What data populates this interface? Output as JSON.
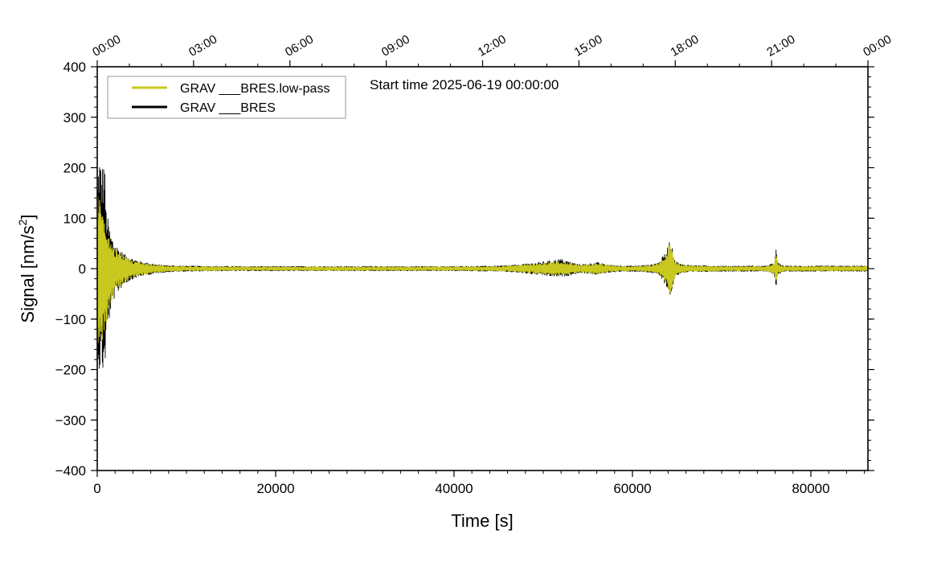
{
  "chart_data": {
    "type": "line",
    "title": "",
    "annotation": "Start time 2025-06-19 00:00:00",
    "xlabel": "Time [s]",
    "ylabel_main": "Signal [nm/s",
    "ylabel_sup": "2",
    "ylabel_end": "]",
    "xlim": [
      0,
      86400
    ],
    "ylim": [
      -400,
      400
    ],
    "grid": false,
    "legend_position": "top-left",
    "x_ticks": [
      0,
      20000,
      40000,
      60000,
      80000
    ],
    "x_tick_labels": [
      "0",
      "20000",
      "40000",
      "60000",
      "80000"
    ],
    "y_ticks": [
      -400,
      -300,
      -200,
      -100,
      0,
      100,
      200,
      300,
      400
    ],
    "y_tick_labels": [
      "−400",
      "−300",
      "−200",
      "−100",
      "0",
      "100",
      "200",
      "300",
      "400"
    ],
    "top_axis": {
      "ticks": [
        0,
        10800,
        21600,
        32400,
        43200,
        54000,
        64800,
        75600,
        86400
      ],
      "labels": [
        "00:00",
        "03:00",
        "06:00",
        "09:00",
        "12:00",
        "15:00",
        "18:00",
        "21:00",
        "00:00"
      ]
    },
    "series": [
      {
        "name": "GRAV ___BRES.low-pass",
        "color": "#c8c81e",
        "envelope": {
          "x": [
            0,
            200,
            500,
            1000,
            1500,
            2000,
            3000,
            4000,
            5000,
            6000,
            7000,
            8000,
            10000,
            15000,
            20000,
            30000,
            40000,
            45000,
            47000,
            49000,
            50000,
            51000,
            52000,
            53000,
            54000,
            55000,
            56000,
            57000,
            58000,
            60000,
            62000,
            63000,
            63800,
            64200,
            64800,
            65500,
            67000,
            70000,
            75000,
            75900,
            76100,
            76300,
            77000,
            80000,
            85000,
            86400
          ],
          "upper": [
            150,
            170,
            120,
            80,
            55,
            40,
            25,
            16,
            12,
            9,
            7,
            6,
            5,
            4,
            4,
            4,
            4,
            5,
            7,
            10,
            12,
            14,
            16,
            12,
            8,
            9,
            11,
            8,
            6,
            5,
            7,
            12,
            30,
            55,
            14,
            8,
            6,
            5,
            5,
            10,
            35,
            10,
            5,
            5,
            5,
            5
          ],
          "lower": [
            -140,
            -180,
            -160,
            -120,
            -70,
            -45,
            -28,
            -18,
            -13,
            -10,
            -8,
            -6,
            -5,
            -4,
            -4,
            -4,
            -4,
            -5,
            -7,
            -10,
            -12,
            -14,
            -15,
            -12,
            -8,
            -9,
            -11,
            -8,
            -6,
            -5,
            -7,
            -12,
            -30,
            -55,
            -14,
            -8,
            -6,
            -5,
            -5,
            -10,
            -38,
            -10,
            -5,
            -5,
            -5,
            -5
          ]
        }
      },
      {
        "name": "GRAV ___BRES",
        "color": "#000000",
        "envelope": {
          "x": [
            0,
            200,
            500,
            800,
            1000,
            1500,
            2000,
            3000,
            4000,
            5000,
            6000,
            7000,
            8000,
            10000,
            15000,
            20000,
            30000,
            40000,
            45000,
            47000,
            49000,
            50000,
            51000,
            52000,
            53000,
            54000,
            55000,
            56000,
            57000,
            58000,
            60000,
            62000,
            63000,
            63800,
            64200,
            64800,
            65500,
            67000,
            70000,
            75000,
            75900,
            76100,
            76300,
            77000,
            80000,
            85000,
            86400
          ],
          "upper": [
            160,
            240,
            200,
            230,
            120,
            70,
            50,
            30,
            20,
            14,
            11,
            8,
            7,
            6,
            5,
            5,
            5,
            5,
            6,
            8,
            12,
            14,
            17,
            20,
            14,
            9,
            10,
            13,
            9,
            7,
            6,
            8,
            14,
            35,
            60,
            16,
            9,
            7,
            6,
            6,
            12,
            40,
            12,
            6,
            6,
            6,
            6
          ],
          "lower": [
            -150,
            -210,
            -200,
            -225,
            -150,
            -85,
            -55,
            -32,
            -21,
            -15,
            -12,
            -9,
            -7,
            -6,
            -5,
            -5,
            -5,
            -5,
            -6,
            -8,
            -12,
            -14,
            -16,
            -17,
            -14,
            -9,
            -10,
            -13,
            -9,
            -7,
            -6,
            -8,
            -14,
            -35,
            -60,
            -16,
            -9,
            -7,
            -6,
            -6,
            -12,
            -40,
            -12,
            -6,
            -6,
            -6,
            -6
          ]
        }
      }
    ]
  }
}
